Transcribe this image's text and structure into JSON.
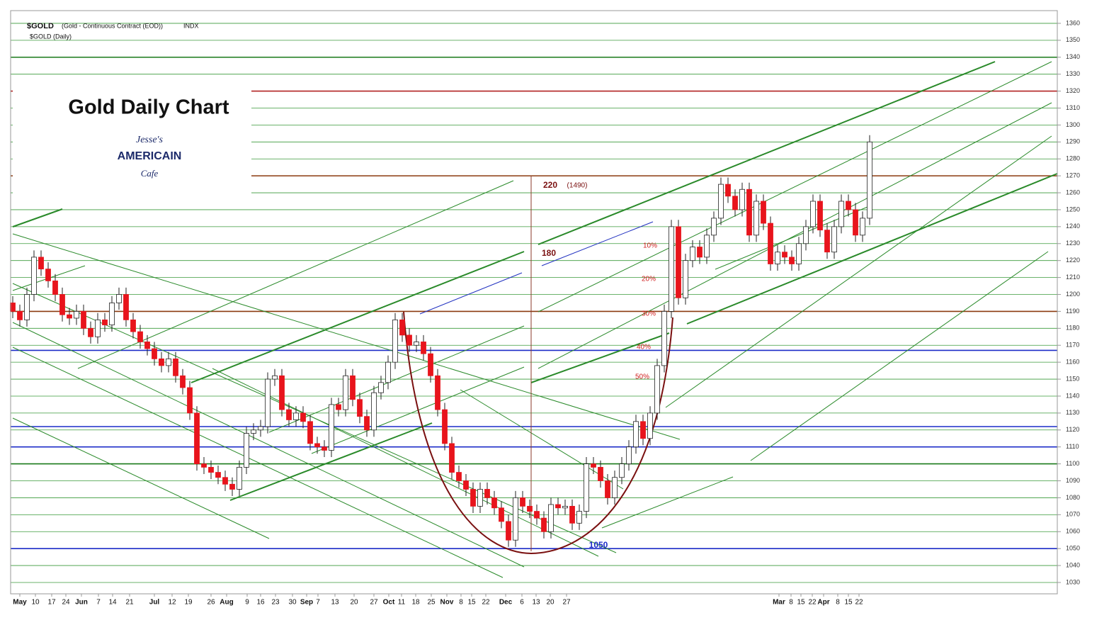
{
  "header": {
    "symbol": "$GOLD",
    "description": "(Gold - Continuous Contract (EOD))",
    "exchange": "INDX",
    "subtitle": "$GOLD (Daily)"
  },
  "chart_data": {
    "type": "candlestick",
    "title": "Gold Daily Chart",
    "logo": [
      "Jesse's",
      "AMERICAIN",
      "Cafe"
    ],
    "annotations": [
      "220",
      "(1490)",
      "180",
      "10%",
      "20%",
      "30%",
      "40%",
      "50%",
      "1050"
    ],
    "open": [
      1195,
      1190,
      1185,
      1200,
      1222,
      1215,
      1208,
      1200,
      1188,
      1186,
      1190,
      1180,
      1175,
      1185,
      1182,
      1195,
      1200,
      1185,
      1178,
      1172,
      1168,
      1162,
      1158,
      1162,
      1152,
      1145,
      1130,
      1100,
      1098,
      1095,
      1092,
      1088,
      1085,
      1098,
      1118,
      1120,
      1122,
      1150,
      1152,
      1132,
      1126,
      1130,
      1125,
      1112,
      1110,
      1108,
      1135,
      1132,
      1152,
      1138,
      1128,
      1120,
      1142,
      1148,
      1160,
      1185,
      1176,
      1170,
      1172,
      1165,
      1152,
      1132,
      1112,
      1095,
      1090,
      1085,
      1075,
      1085,
      1080,
      1074,
      1066,
      1055,
      1080,
      1075,
      1072,
      1068,
      1060,
      1076,
      1074,
      1075,
      1065,
      1072,
      1100,
      1098,
      1090,
      1080,
      1092,
      1100,
      1110,
      1125,
      1115,
      1130,
      1158,
      1190,
      1240,
      1198,
      1220,
      1228,
      1222,
      1235,
      1245,
      1265,
      1258,
      1250,
      1262,
      1235,
      1255,
      1242,
      1218,
      1225,
      1222,
      1218,
      1230,
      1240,
      1255,
      1238,
      1225,
      1240,
      1255,
      1250,
      1235,
      1245
    ],
    "high": [
      1199,
      1194,
      1204,
      1226,
      1226,
      1219,
      1212,
      1204,
      1192,
      1194,
      1194,
      1184,
      1189,
      1189,
      1199,
      1204,
      1204,
      1189,
      1182,
      1176,
      1172,
      1166,
      1166,
      1166,
      1156,
      1149,
      1134,
      1104,
      1102,
      1099,
      1096,
      1092,
      1102,
      1122,
      1124,
      1126,
      1154,
      1156,
      1156,
      1136,
      1134,
      1134,
      1129,
      1116,
      1114,
      1139,
      1139,
      1156,
      1156,
      1142,
      1132,
      1146,
      1152,
      1164,
      1189,
      1189,
      1180,
      1176,
      1176,
      1169,
      1156,
      1136,
      1116,
      1099,
      1094,
      1089,
      1089,
      1089,
      1084,
      1078,
      1070,
      1084,
      1084,
      1079,
      1076,
      1072,
      1080,
      1080,
      1079,
      1079,
      1076,
      1104,
      1104,
      1102,
      1094,
      1096,
      1104,
      1114,
      1129,
      1129,
      1134,
      1162,
      1194,
      1244,
      1244,
      1224,
      1232,
      1232,
      1239,
      1249,
      1269,
      1269,
      1262,
      1266,
      1266,
      1259,
      1259,
      1246,
      1229,
      1229,
      1226,
      1234,
      1244,
      1259,
      1259,
      1242,
      1244,
      1259,
      1259,
      1254,
      1249,
      1294
    ],
    "low": [
      1186,
      1181,
      1181,
      1196,
      1211,
      1204,
      1196,
      1184,
      1182,
      1182,
      1176,
      1171,
      1171,
      1178,
      1178,
      1191,
      1181,
      1174,
      1168,
      1164,
      1158,
      1154,
      1154,
      1148,
      1141,
      1126,
      1096,
      1094,
      1091,
      1088,
      1084,
      1081,
      1081,
      1094,
      1114,
      1116,
      1118,
      1146,
      1128,
      1122,
      1122,
      1121,
      1108,
      1106,
      1104,
      1104,
      1128,
      1128,
      1134,
      1124,
      1116,
      1116,
      1138,
      1144,
      1156,
      1172,
      1166,
      1166,
      1161,
      1148,
      1128,
      1108,
      1091,
      1086,
      1081,
      1071,
      1071,
      1076,
      1070,
      1062,
      1051,
      1051,
      1071,
      1068,
      1064,
      1056,
      1056,
      1070,
      1070,
      1061,
      1061,
      1068,
      1094,
      1086,
      1076,
      1076,
      1088,
      1096,
      1106,
      1111,
      1111,
      1126,
      1154,
      1186,
      1194,
      1194,
      1216,
      1218,
      1218,
      1231,
      1241,
      1254,
      1246,
      1246,
      1231,
      1231,
      1238,
      1214,
      1214,
      1218,
      1214,
      1214,
      1226,
      1236,
      1234,
      1221,
      1221,
      1236,
      1246,
      1231,
      1231,
      1241
    ],
    "close": [
      1190,
      1185,
      1200,
      1222,
      1215,
      1208,
      1200,
      1188,
      1186,
      1190,
      1180,
      1175,
      1185,
      1182,
      1195,
      1200,
      1185,
      1178,
      1172,
      1168,
      1162,
      1158,
      1162,
      1152,
      1145,
      1130,
      1100,
      1098,
      1095,
      1092,
      1088,
      1085,
      1098,
      1118,
      1120,
      1122,
      1150,
      1152,
      1132,
      1126,
      1130,
      1125,
      1112,
      1110,
      1108,
      1135,
      1132,
      1152,
      1138,
      1128,
      1120,
      1142,
      1148,
      1160,
      1185,
      1176,
      1170,
      1172,
      1165,
      1152,
      1132,
      1112,
      1095,
      1090,
      1085,
      1075,
      1085,
      1080,
      1074,
      1066,
      1055,
      1080,
      1075,
      1072,
      1068,
      1060,
      1076,
      1074,
      1075,
      1065,
      1072,
      1100,
      1098,
      1090,
      1080,
      1092,
      1100,
      1110,
      1125,
      1115,
      1130,
      1158,
      1190,
      1240,
      1198,
      1220,
      1228,
      1222,
      1235,
      1245,
      1265,
      1258,
      1250,
      1262,
      1235,
      1255,
      1242,
      1218,
      1225,
      1222,
      1218,
      1230,
      1240,
      1255,
      1238,
      1225,
      1240,
      1255,
      1250,
      1235,
      1245,
      1290
    ],
    "up_color": "#ffffff",
    "down_color": "#e8141c",
    "levels": [
      {
        "value": 1340,
        "color": "#1a7a1a"
      },
      {
        "value": 1320,
        "color": "#b22222"
      },
      {
        "value": 1270,
        "color": "#8b3a0f"
      },
      {
        "value": 1190,
        "color": "#8b3a0f"
      },
      {
        "value": 1167,
        "color": "#1c2cc8"
      },
      {
        "value": 1122,
        "color": "#1c2cc8"
      },
      {
        "value": 1110,
        "color": "#1c2cc8"
      },
      {
        "value": 1100,
        "color": "#1a7a1a"
      },
      {
        "value": 1050,
        "color": "#1c2cc8"
      }
    ],
    "xlim": [
      -0.3,
      147.5
    ],
    "xticks": [
      {
        "value": 1.0,
        "label": "May"
      },
      {
        "value": 3.2,
        "label": "10"
      },
      {
        "value": 5.5,
        "label": "17"
      },
      {
        "value": 7.5,
        "label": "24"
      },
      {
        "value": 9.7,
        "label": "Jun"
      },
      {
        "value": 12.1,
        "label": "7"
      },
      {
        "value": 14.1,
        "label": "14"
      },
      {
        "value": 16.5,
        "label": "21"
      },
      {
        "value": 20,
        "label": "Jul"
      },
      {
        "value": 22.5,
        "label": "12"
      },
      {
        "value": 24.8,
        "label": "19"
      },
      {
        "value": 28,
        "label": "26"
      },
      {
        "value": 30.2,
        "label": "Aug"
      },
      {
        "value": 33.1,
        "label": "9"
      },
      {
        "value": 35,
        "label": "16"
      },
      {
        "value": 37.1,
        "label": "23"
      },
      {
        "value": 39.5,
        "label": "30"
      },
      {
        "value": 41.5,
        "label": "Sep"
      },
      {
        "value": 43.1,
        "label": "7"
      },
      {
        "value": 45.5,
        "label": "13"
      },
      {
        "value": 48.2,
        "label": "20"
      },
      {
        "value": 51,
        "label": "27"
      },
      {
        "value": 53.1,
        "label": "Oct"
      },
      {
        "value": 54.9,
        "label": "11"
      },
      {
        "value": 56.9,
        "label": "18"
      },
      {
        "value": 59.1,
        "label": "25"
      },
      {
        "value": 61.3,
        "label": "Nov"
      },
      {
        "value": 63.3,
        "label": "8"
      },
      {
        "value": 64.8,
        "label": "15"
      },
      {
        "value": 66.8,
        "label": "22"
      },
      {
        "value": 69.6,
        "label": "Dec"
      },
      {
        "value": 71.9,
        "label": "6"
      },
      {
        "value": 73.9,
        "label": "13"
      },
      {
        "value": 75.9,
        "label": "20"
      },
      {
        "value": 78.2,
        "label": "27"
      },
      {
        "value": 108.2,
        "label": "Mar"
      },
      {
        "value": 109.9,
        "label": "8"
      },
      {
        "value": 111.3,
        "label": "15"
      },
      {
        "value": 112.9,
        "label": "22"
      },
      {
        "value": 114.5,
        "label": "Apr"
      },
      {
        "value": 116.5,
        "label": "8"
      },
      {
        "value": 118,
        "label": "15"
      },
      {
        "value": 119.5,
        "label": "22"
      }
    ],
    "ylim": [
      1023.3,
      1367.5
    ],
    "yticks": [
      1030,
      1040,
      1050,
      1060,
      1070,
      1080,
      1090,
      1100,
      1110,
      1120,
      1130,
      1140,
      1150,
      1160,
      1170,
      1180,
      1190,
      1200,
      1210,
      1220,
      1230,
      1240,
      1250,
      1260,
      1270,
      1280,
      1290,
      1300,
      1310,
      1320,
      1330,
      1340,
      1350,
      1360
    ],
    "grid": true,
    "grid_color": "#3a9a3a"
  }
}
